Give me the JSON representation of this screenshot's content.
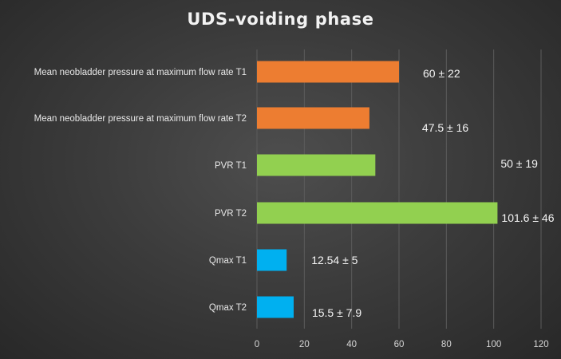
{
  "chart_data": {
    "type": "bar",
    "orientation": "horizontal",
    "title": "UDS-voiding  phase",
    "categories": [
      "Mean neobladder pressure at maximum flow rate T1",
      "Mean neobladder pressure at maximum flow rate T2",
      "PVR T1",
      "PVR T2",
      "Qmax T1",
      "Qmax T2"
    ],
    "values": [
      60,
      47.5,
      50,
      101.6,
      12.54,
      15.5
    ],
    "data_labels": [
      "60 ± 22",
      "47.5 ± 16",
      "50 ± 19",
      "101.6 ± 46",
      "12.54 ± 5",
      "15.5 ± 7.9"
    ],
    "bar_colors": [
      "#ed7d31",
      "#ed7d31",
      "#92d050",
      "#92d050",
      "#00b0f0",
      "#00b0f0"
    ],
    "xlim": [
      0,
      120
    ],
    "xticks": [
      0,
      20,
      40,
      60,
      80,
      100,
      120
    ],
    "xlabel": "",
    "ylabel": "",
    "grid": "vertical",
    "legend": "none"
  }
}
